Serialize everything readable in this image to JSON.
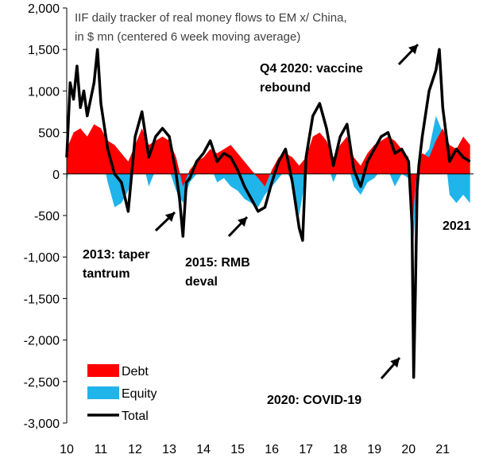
{
  "chart_data": {
    "type": "area",
    "title_lines": [
      "IIF daily tracker of real money flows to EM x/ China,",
      "in $ mn (centered 6 week moving average)"
    ],
    "xlabel": "",
    "ylabel": "",
    "ylim": [
      -3000,
      2000
    ],
    "yticks": [
      2000,
      1500,
      1000,
      500,
      0,
      -500,
      -1000,
      -1500,
      -2000,
      -2500,
      -3000
    ],
    "ytick_labels": [
      "2,000",
      "1,500",
      "1,000",
      "500",
      "0",
      "-500",
      "-1,000",
      "-1,500",
      "-2,000",
      "-2,500",
      "-3,000"
    ],
    "xlim": [
      2010.0,
      2021.9
    ],
    "xticks": [
      2010,
      2011,
      2012,
      2013,
      2014,
      2015,
      2016,
      2017,
      2018,
      2019,
      2020,
      2021
    ],
    "xtick_labels": [
      "10",
      "11",
      "12",
      "13",
      "14",
      "15",
      "16",
      "17",
      "18",
      "19",
      "20",
      "21"
    ],
    "grid": false,
    "legend_position": "bottom-left",
    "colors": {
      "debt": "#ff0000",
      "equity": "#1fb4ea",
      "total": "#000000"
    },
    "series": [
      {
        "name": "Debt",
        "x": [
          2010.0,
          2010.2,
          2010.4,
          2010.6,
          2010.8,
          2011.0,
          2011.2,
          2011.4,
          2011.6,
          2011.8,
          2012.0,
          2012.2,
          2012.4,
          2012.6,
          2012.8,
          2013.0,
          2013.2,
          2013.4,
          2013.6,
          2013.8,
          2014.0,
          2014.2,
          2014.4,
          2014.6,
          2014.8,
          2015.0,
          2015.2,
          2015.4,
          2015.6,
          2015.8,
          2016.0,
          2016.2,
          2016.4,
          2016.6,
          2016.8,
          2017.0,
          2017.2,
          2017.4,
          2017.6,
          2017.8,
          2018.0,
          2018.2,
          2018.4,
          2018.6,
          2018.8,
          2019.0,
          2019.2,
          2019.4,
          2019.6,
          2019.8,
          2020.0,
          2020.1,
          2020.2,
          2020.3,
          2020.4,
          2020.6,
          2020.8,
          2021.0,
          2021.2,
          2021.4,
          2021.6,
          2021.8
        ],
        "values": [
          300,
          500,
          550,
          450,
          600,
          550,
          400,
          350,
          250,
          150,
          350,
          550,
          350,
          400,
          450,
          400,
          200,
          -150,
          50,
          150,
          200,
          300,
          250,
          300,
          350,
          250,
          150,
          50,
          -50,
          -150,
          50,
          200,
          250,
          200,
          100,
          200,
          450,
          500,
          400,
          200,
          350,
          450,
          200,
          100,
          250,
          350,
          400,
          450,
          400,
          300,
          200,
          -700,
          -150,
          150,
          250,
          200,
          400,
          550,
          350,
          300,
          450,
          350
        ]
      },
      {
        "name": "Equity",
        "x": [
          2010.0,
          2010.2,
          2010.4,
          2010.6,
          2010.8,
          2011.0,
          2011.2,
          2011.4,
          2011.6,
          2011.8,
          2012.0,
          2012.2,
          2012.4,
          2012.6,
          2012.8,
          2013.0,
          2013.2,
          2013.4,
          2013.6,
          2013.8,
          2014.0,
          2014.2,
          2014.4,
          2014.6,
          2014.8,
          2015.0,
          2015.2,
          2015.4,
          2015.6,
          2015.8,
          2016.0,
          2016.2,
          2016.4,
          2016.6,
          2016.8,
          2017.0,
          2017.2,
          2017.4,
          2017.6,
          2017.8,
          2018.0,
          2018.2,
          2018.4,
          2018.6,
          2018.8,
          2019.0,
          2019.2,
          2019.4,
          2019.6,
          2019.8,
          2020.0,
          2020.1,
          2020.2,
          2020.3,
          2020.4,
          2020.6,
          2020.8,
          2021.0,
          2021.2,
          2021.4,
          2021.6,
          2021.8
        ],
        "values": [
          -100,
          400,
          300,
          200,
          500,
          300,
          -100,
          -400,
          -350,
          -200,
          100,
          200,
          -150,
          50,
          100,
          50,
          -200,
          -350,
          -100,
          0,
          50,
          100,
          -100,
          -50,
          -150,
          -200,
          -300,
          -350,
          -400,
          -250,
          -150,
          -50,
          50,
          -100,
          -500,
          0,
          250,
          350,
          150,
          -100,
          100,
          150,
          -150,
          -250,
          -100,
          -50,
          50,
          50,
          -150,
          0,
          -50,
          -1050,
          -450,
          -100,
          200,
          300,
          700,
          500,
          -250,
          -350,
          -250,
          -350
        ]
      },
      {
        "name": "Total",
        "x": [
          2010.0,
          2010.1,
          2010.2,
          2010.3,
          2010.4,
          2010.5,
          2010.6,
          2010.7,
          2010.8,
          2010.9,
          2011.0,
          2011.2,
          2011.4,
          2011.6,
          2011.8,
          2012.0,
          2012.2,
          2012.4,
          2012.6,
          2012.8,
          2013.0,
          2013.2,
          2013.3,
          2013.4,
          2013.5,
          2013.6,
          2013.8,
          2014.0,
          2014.2,
          2014.4,
          2014.6,
          2014.8,
          2015.0,
          2015.2,
          2015.4,
          2015.6,
          2015.8,
          2016.0,
          2016.2,
          2016.4,
          2016.6,
          2016.8,
          2016.9,
          2017.0,
          2017.2,
          2017.4,
          2017.6,
          2017.8,
          2018.0,
          2018.2,
          2018.4,
          2018.6,
          2018.8,
          2019.0,
          2019.2,
          2019.4,
          2019.6,
          2019.8,
          2020.0,
          2020.1,
          2020.15,
          2020.2,
          2020.25,
          2020.3,
          2020.4,
          2020.6,
          2020.8,
          2020.9,
          2021.0,
          2021.2,
          2021.4,
          2021.6,
          2021.8
        ],
        "values": [
          200,
          1100,
          900,
          1300,
          800,
          1000,
          700,
          900,
          1100,
          1500,
          850,
          300,
          0,
          -100,
          -450,
          450,
          750,
          200,
          450,
          550,
          450,
          0,
          -300,
          -750,
          -100,
          -50,
          150,
          250,
          400,
          150,
          250,
          200,
          50,
          -150,
          -300,
          -450,
          -400,
          -100,
          150,
          300,
          -100,
          -650,
          -800,
          200,
          700,
          850,
          550,
          100,
          450,
          600,
          50,
          -150,
          150,
          300,
          450,
          500,
          250,
          300,
          150,
          -600,
          -2450,
          -1400,
          -200,
          100,
          450,
          1000,
          1250,
          1500,
          800,
          150,
          300,
          200,
          150
        ]
      }
    ],
    "annotations": [
      {
        "id": "covid",
        "lines": [
          "2020: COVID-19"
        ],
        "x": 2020.2,
        "y": -2450
      },
      {
        "id": "vaccine",
        "lines": [
          "Q4 2020: vaccine",
          "rebound"
        ],
        "x": 2020.9,
        "y": 1500
      },
      {
        "id": "taper",
        "lines": [
          "2013: taper",
          "tantrum"
        ],
        "x": 2013.4,
        "y": -750
      },
      {
        "id": "rmb",
        "lines": [
          "2015: RMB",
          "deval"
        ],
        "x": 2015.7,
        "y": -450
      },
      {
        "id": "yr2021",
        "lines": [
          "2021"
        ],
        "x": 2021.5,
        "y": -500
      }
    ]
  }
}
